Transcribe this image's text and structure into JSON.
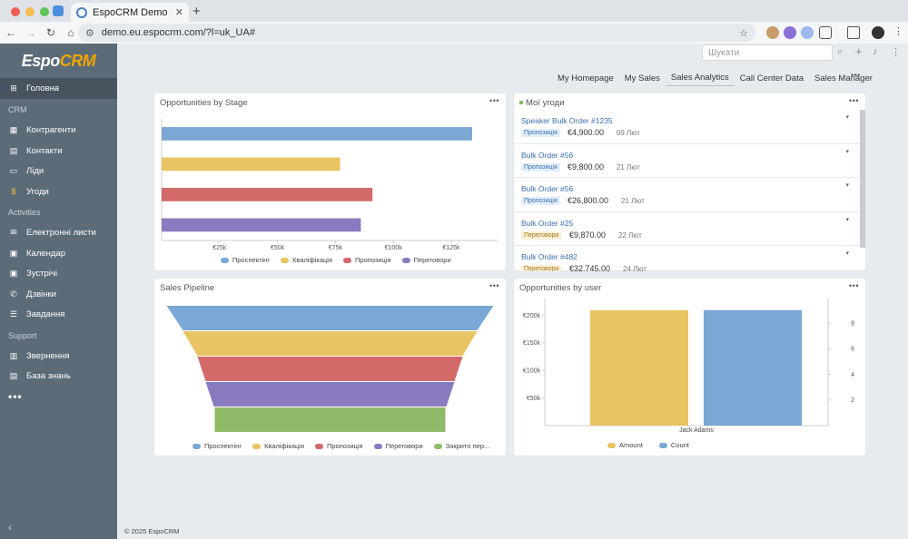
{
  "browser": {
    "tab_title": "EspoCRM Demo",
    "url": "demo.eu.espocrm.com/?l=uk_UA#",
    "tab_close": "✕",
    "new_tab": "+"
  },
  "sidebar": {
    "logo_espo": "Espo",
    "logo_crm": "CRM",
    "home": "Головна",
    "groups": [
      {
        "label": "CRM",
        "items": [
          "Контрагенти",
          "Контакти",
          "Ліди",
          "Угоди"
        ]
      },
      {
        "label": "Activities",
        "items": [
          "Електронні листи",
          "Календар",
          "Зустрічі",
          "Дзвінки",
          "Завдання"
        ]
      },
      {
        "label": "Support",
        "items": [
          "Звернення",
          "База знань"
        ]
      }
    ],
    "more": "•••",
    "collapse": "‹"
  },
  "header": {
    "search_placeholder": "Шукати"
  },
  "dashboard_tabs": [
    "My Homepage",
    "My Sales",
    "Sales Analytics",
    "Call Center Data",
    "Sales Manager"
  ],
  "dashboard_active_tab": "Sales Analytics",
  "panels": {
    "stage": {
      "title": "Opportunities by Stage",
      "menu": "•••"
    },
    "deals": {
      "title": "Мої угоди",
      "menu": "•••"
    },
    "pipeline": {
      "title": "Sales Pipeline",
      "menu": "•••"
    },
    "byuser": {
      "title": "Opportunities by user",
      "menu": "•••"
    }
  },
  "deals": [
    {
      "name": "Speaker Bulk Order #1235",
      "stage": "Пропозиція",
      "amount": "€4,900.00",
      "date": "09 Лют"
    },
    {
      "name": "Bulk Order #56",
      "stage": "Пропозиція",
      "amount": "€9,800.00",
      "date": "21 Лют"
    },
    {
      "name": "Bulk Order #56",
      "stage": "Пропозиція",
      "amount": "€26,800.00",
      "date": "21 Лют"
    },
    {
      "name": "Bulk Order #25",
      "stage": "Переговори",
      "amount": "€9,870.00",
      "date": "22 Лют"
    },
    {
      "name": "Bulk Order #482",
      "stage": "Переговори",
      "amount": "€32,745.00",
      "date": "24 Лют"
    }
  ],
  "colors": {
    "prospecting": "#7ba7d4",
    "qualification": "#e8c462",
    "proposal": "#d4696a",
    "negotiation": "#8a7bc0",
    "closed": "#8fbb68",
    "badge_proposal_bg": "#e3eefa",
    "badge_proposal_fg": "#3a6fae",
    "badge_negotiation_bg": "#fbf0d6",
    "badge_negotiation_fg": "#a47a1c"
  },
  "chart_data": [
    {
      "type": "bar",
      "orientation": "horizontal",
      "categories": [
        "Проспектінг",
        "Кваліфікація",
        "Пропозиція",
        "Переговори"
      ],
      "values": [
        134000,
        77000,
        91000,
        86000
      ],
      "xticks": [
        "€25k",
        "€50k",
        "€75k",
        "€100k",
        "€125k"
      ],
      "xtick_values": [
        25000,
        50000,
        75000,
        100000,
        125000
      ],
      "xlim": [
        0,
        145000
      ],
      "legend": [
        "Проспектінг",
        "Кваліфікація",
        "Пропозиція",
        "Переговори"
      ],
      "legend_position": "bottom",
      "grid": false
    },
    {
      "type": "funnel",
      "categories": [
        "Проспектінг",
        "Кваліфікація",
        "Пропозиція",
        "Переговори",
        "Закрито пер..."
      ],
      "legend": [
        "Проспектінг",
        "Кваліфікація",
        "Пропозиція",
        "Переговори",
        "Закрито пер..."
      ],
      "legend_position": "bottom"
    },
    {
      "type": "bar",
      "categories": [
        "Jack Adams"
      ],
      "series": [
        {
          "name": "Amount",
          "values": [
            209000
          ],
          "axis": "left"
        },
        {
          "name": "Count",
          "values": [
            9
          ],
          "axis": "right"
        }
      ],
      "yticks_left": [
        "€50k",
        "€100k",
        "€150k",
        "€200k"
      ],
      "ytick_values_left": [
        50000,
        100000,
        150000,
        200000
      ],
      "ylim_left": [
        0,
        230000
      ],
      "yticks_right": [
        "2",
        "4",
        "6",
        "8"
      ],
      "ytick_values_right": [
        2,
        4,
        6,
        8
      ],
      "ylim_right": [
        0,
        9.9
      ],
      "legend": [
        "Amount",
        "Count"
      ],
      "legend_position": "bottom",
      "grid": false
    }
  ],
  "footer": "© 2025 EspoCRM"
}
